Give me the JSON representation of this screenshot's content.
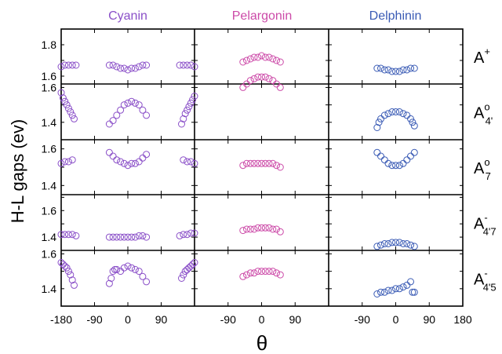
{
  "chart_data": {
    "type": "scatter",
    "colors": {
      "Cyanin": "#8a4fc8",
      "Pelargonin": "#cc4aa8",
      "Delphinin": "#3a5bb5",
      "axis": "#000000"
    },
    "columns": [
      {
        "name": "Cyanin",
        "xlim": [
          -180,
          180
        ],
        "xticks": [
          -180,
          -90,
          0,
          90
        ]
      },
      {
        "name": "Pelargonin",
        "xlim": [
          -180,
          180
        ],
        "xticks": [
          -90,
          0,
          90
        ]
      },
      {
        "name": "Delphinin",
        "xlim": [
          -180,
          180
        ],
        "xticks": [
          -90,
          0,
          90,
          180
        ]
      }
    ],
    "rows": [
      {
        "label_base": "A",
        "label_sup": "+",
        "label_sub": "",
        "ylim": [
          1.55,
          1.9
        ],
        "yticks": [
          "1.6",
          "1.8"
        ]
      },
      {
        "label_base": "A",
        "label_sup": "o",
        "label_sub": "4'",
        "ylim": [
          1.3,
          1.62
        ],
        "yticks": [
          "1.4",
          "1.6"
        ]
      },
      {
        "label_base": "A",
        "label_sup": "o",
        "label_sub": "7",
        "ylim": [
          1.35,
          1.65
        ],
        "yticks": [
          "1.4",
          "1.6"
        ]
      },
      {
        "label_base": "A",
        "label_sup": "-",
        "label_sub": "4'7",
        "ylim": [
          1.3,
          1.72
        ],
        "yticks": [
          "1.4",
          "1.6"
        ]
      },
      {
        "label_base": "A",
        "label_sup": "-",
        "label_sub": "4'5",
        "ylim": [
          1.3,
          1.62
        ],
        "yticks": [
          "1.4",
          "1.6"
        ]
      }
    ],
    "ylabel": "H-L gaps (ev)",
    "xlabel": "θ",
    "x_tick_labels": [
      "-180",
      "-90",
      "0",
      "90",
      "-90",
      "0",
      "90",
      "-90",
      "0",
      "90",
      "180"
    ],
    "series": [
      {
        "row": 0,
        "col": 0,
        "x": [
          -180,
          -170,
          -160,
          -150,
          -140,
          -50,
          -40,
          -30,
          -20,
          -10,
          0,
          10,
          20,
          30,
          40,
          50,
          140,
          150,
          160,
          170,
          180
        ],
        "y": [
          1.66,
          1.67,
          1.67,
          1.67,
          1.67,
          1.67,
          1.67,
          1.66,
          1.65,
          1.65,
          1.64,
          1.65,
          1.65,
          1.66,
          1.67,
          1.67,
          1.67,
          1.67,
          1.67,
          1.67,
          1.66
        ]
      },
      {
        "row": 0,
        "col": 1,
        "x": [
          -50,
          -40,
          -30,
          -20,
          -10,
          0,
          10,
          20,
          30,
          40,
          50
        ],
        "y": [
          1.69,
          1.7,
          1.71,
          1.72,
          1.72,
          1.73,
          1.72,
          1.72,
          1.71,
          1.7,
          1.69
        ]
      },
      {
        "row": 0,
        "col": 2,
        "x": [
          -50,
          -40,
          -30,
          -20,
          -10,
          0,
          10,
          20,
          30,
          40,
          50
        ],
        "y": [
          1.65,
          1.65,
          1.64,
          1.64,
          1.63,
          1.63,
          1.63,
          1.64,
          1.64,
          1.65,
          1.65
        ]
      },
      {
        "row": 1,
        "col": 0,
        "x": [
          -180,
          -175,
          -170,
          -165,
          -160,
          -155,
          -150,
          -145,
          -50,
          -40,
          -30,
          -20,
          -10,
          0,
          10,
          20,
          30,
          40,
          50,
          145,
          150,
          155,
          160,
          165,
          170,
          175,
          180
        ],
        "y": [
          1.57,
          1.54,
          1.52,
          1.5,
          1.48,
          1.46,
          1.44,
          1.42,
          1.39,
          1.41,
          1.44,
          1.47,
          1.5,
          1.51,
          1.52,
          1.51,
          1.5,
          1.47,
          1.44,
          1.39,
          1.42,
          1.45,
          1.47,
          1.49,
          1.51,
          1.53,
          1.55
        ]
      },
      {
        "row": 1,
        "col": 1,
        "x": [
          -50,
          -40,
          -30,
          -20,
          -10,
          0,
          10,
          20,
          30,
          40,
          50
        ],
        "y": [
          1.6,
          1.62,
          1.64,
          1.65,
          1.66,
          1.66,
          1.66,
          1.65,
          1.64,
          1.62,
          1.6
        ]
      },
      {
        "row": 1,
        "col": 2,
        "x": [
          -50,
          -45,
          -40,
          -30,
          -20,
          -10,
          0,
          10,
          20,
          30,
          40,
          45,
          50
        ],
        "y": [
          1.37,
          1.4,
          1.42,
          1.44,
          1.45,
          1.46,
          1.46,
          1.46,
          1.45,
          1.44,
          1.42,
          1.4,
          1.38
        ]
      },
      {
        "row": 2,
        "col": 0,
        "x": [
          -180,
          -170,
          -160,
          -150,
          -50,
          -40,
          -30,
          -20,
          -10,
          0,
          10,
          20,
          30,
          40,
          50,
          150,
          160,
          170,
          180
        ],
        "y": [
          1.52,
          1.53,
          1.53,
          1.54,
          1.58,
          1.56,
          1.54,
          1.53,
          1.52,
          1.51,
          1.52,
          1.52,
          1.53,
          1.55,
          1.57,
          1.54,
          1.53,
          1.53,
          1.52
        ]
      },
      {
        "row": 2,
        "col": 1,
        "x": [
          -50,
          -40,
          -30,
          -20,
          -10,
          0,
          10,
          20,
          30,
          40,
          50
        ],
        "y": [
          1.51,
          1.52,
          1.52,
          1.52,
          1.52,
          1.52,
          1.52,
          1.52,
          1.52,
          1.51,
          1.5
        ]
      },
      {
        "row": 2,
        "col": 2,
        "x": [
          -50,
          -40,
          -30,
          -20,
          -10,
          0,
          10,
          20,
          30,
          40,
          50
        ],
        "y": [
          1.58,
          1.56,
          1.54,
          1.52,
          1.51,
          1.51,
          1.51,
          1.52,
          1.54,
          1.56,
          1.58
        ]
      },
      {
        "row": 3,
        "col": 0,
        "x": [
          -180,
          -170,
          -160,
          -150,
          -140,
          -50,
          -40,
          -30,
          -20,
          -10,
          0,
          10,
          20,
          30,
          40,
          50,
          140,
          150,
          160,
          170,
          180
        ],
        "y": [
          1.42,
          1.42,
          1.42,
          1.42,
          1.41,
          1.4,
          1.4,
          1.4,
          1.4,
          1.4,
          1.4,
          1.4,
          1.4,
          1.41,
          1.41,
          1.4,
          1.41,
          1.42,
          1.42,
          1.43,
          1.43
        ]
      },
      {
        "row": 3,
        "col": 1,
        "x": [
          -50,
          -40,
          -30,
          -20,
          -10,
          0,
          10,
          20,
          30,
          40,
          50
        ],
        "y": [
          1.45,
          1.46,
          1.46,
          1.46,
          1.47,
          1.47,
          1.47,
          1.47,
          1.46,
          1.46,
          1.44
        ]
      },
      {
        "row": 3,
        "col": 2,
        "x": [
          -50,
          -40,
          -30,
          -20,
          -10,
          0,
          10,
          20,
          30,
          40,
          50
        ],
        "y": [
          1.33,
          1.34,
          1.35,
          1.35,
          1.36,
          1.36,
          1.36,
          1.35,
          1.35,
          1.34,
          1.33
        ]
      },
      {
        "row": 4,
        "col": 0,
        "x": [
          -180,
          -175,
          -170,
          -165,
          -160,
          -155,
          -150,
          -145,
          -50,
          -45,
          -40,
          -35,
          -30,
          -20,
          -10,
          0,
          10,
          20,
          30,
          40,
          50,
          145,
          150,
          155,
          160,
          165,
          170,
          175,
          180
        ],
        "y": [
          1.55,
          1.54,
          1.53,
          1.52,
          1.5,
          1.48,
          1.45,
          1.42,
          1.43,
          1.46,
          1.5,
          1.51,
          1.51,
          1.5,
          1.52,
          1.53,
          1.52,
          1.51,
          1.5,
          1.47,
          1.44,
          1.46,
          1.48,
          1.5,
          1.51,
          1.52,
          1.53,
          1.54,
          1.55
        ]
      },
      {
        "row": 4,
        "col": 1,
        "x": [
          -50,
          -40,
          -30,
          -20,
          -10,
          0,
          10,
          20,
          30,
          40,
          50
        ],
        "y": [
          1.47,
          1.48,
          1.49,
          1.49,
          1.5,
          1.5,
          1.5,
          1.5,
          1.5,
          1.49,
          1.48
        ]
      },
      {
        "row": 4,
        "col": 2,
        "x": [
          -50,
          -40,
          -30,
          -20,
          -10,
          0,
          10,
          20,
          30,
          40,
          45,
          50
        ],
        "y": [
          1.37,
          1.38,
          1.38,
          1.39,
          1.39,
          1.4,
          1.4,
          1.41,
          1.42,
          1.44,
          1.38,
          1.38
        ]
      }
    ]
  }
}
